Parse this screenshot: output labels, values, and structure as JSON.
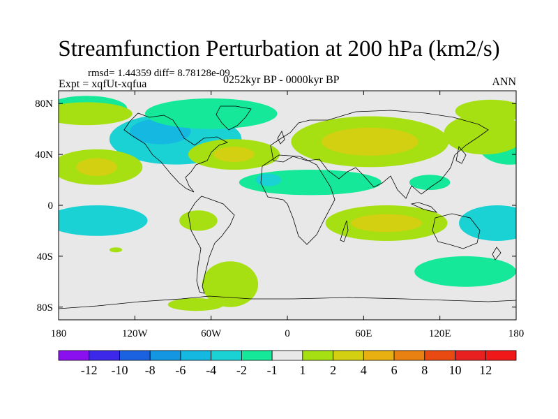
{
  "header": {
    "title": "Streamfunction Perturbation at 200 hPa (km2/s)",
    "stats": "rmsd= 1.44359 diff= 8.78128e-09",
    "experiment": "Expt = xqfUt-xqfua",
    "period": "0252kyr BP - 0000kyr BP",
    "season": "ANN"
  },
  "chart_data": {
    "type": "heatmap",
    "title": "Streamfunction Perturbation at 200 hPa (km2/s)",
    "xlabel": "",
    "ylabel": "",
    "xlim": [
      -180,
      180
    ],
    "ylim": [
      -90,
      90
    ],
    "x_ticks": [
      {
        "value": -180,
        "label": "180"
      },
      {
        "value": -120,
        "label": "120W"
      },
      {
        "value": -60,
        "label": "60W"
      },
      {
        "value": 0,
        "label": "0"
      },
      {
        "value": 60,
        "label": "60E"
      },
      {
        "value": 120,
        "label": "120E"
      },
      {
        "value": 180,
        "label": "180"
      }
    ],
    "y_ticks": [
      {
        "value": 80,
        "label": "80N"
      },
      {
        "value": 40,
        "label": "40N"
      },
      {
        "value": 0,
        "label": "0"
      },
      {
        "value": -40,
        "label": "40S"
      },
      {
        "value": -80,
        "label": "80S"
      }
    ],
    "colorbar": {
      "labels": [
        "-12",
        "-10",
        "-8",
        "-6",
        "-4",
        "-2",
        "-1",
        "1",
        "2",
        "4",
        "6",
        "8",
        "10",
        "12"
      ],
      "colors": [
        "#8a10f0",
        "#3c28e8",
        "#1a62e0",
        "#1496e0",
        "#14b8e0",
        "#1ad2d4",
        "#16e89a",
        "#e8e8e8",
        "#a6e012",
        "#d2d010",
        "#e8b010",
        "#e88012",
        "#e84a12",
        "#e82020",
        "#f01818"
      ]
    },
    "regions": [
      {
        "label": "-4",
        "color": "#1ad2d4",
        "lon": -88,
        "lat": 52,
        "rlon": 52,
        "rlat": 20
      },
      {
        "label": "-6",
        "color": "#14b8e0",
        "lon": -100,
        "lat": 58,
        "rlon": 24,
        "rlat": 10
      },
      {
        "label": "-2",
        "color": "#16e89a",
        "lon": -60,
        "lat": 72,
        "rlon": 52,
        "rlat": 12
      },
      {
        "label": "-2",
        "color": "#16e89a",
        "lon": -158,
        "lat": 76,
        "rlon": 32,
        "rlat": 10
      },
      {
        "label": "-2",
        "color": "#16e89a",
        "lon": 175,
        "lat": 46,
        "rlon": 24,
        "rlat": 14
      },
      {
        "label": "-2",
        "color": "#16e89a",
        "lon": 18,
        "lat": 18,
        "rlon": 56,
        "rlat": 10
      },
      {
        "label": "-4",
        "color": "#1ad2d4",
        "lon": -15,
        "lat": 20,
        "rlon": 10,
        "rlat": 5
      },
      {
        "label": "-2",
        "color": "#16e89a",
        "lon": 112,
        "lat": 18,
        "rlon": 16,
        "rlat": 6
      },
      {
        "label": "-4",
        "color": "#1ad2d4",
        "lon": -150,
        "lat": -12,
        "rlon": 40,
        "rlat": 12
      },
      {
        "label": "-4",
        "color": "#1ad2d4",
        "lon": 165,
        "lat": -14,
        "rlon": 30,
        "rlat": 14
      },
      {
        "label": "-2",
        "color": "#16e89a",
        "lon": 140,
        "lat": -52,
        "rlon": 40,
        "rlat": 12
      },
      {
        "label": "2",
        "color": "#a6e012",
        "lon": -158,
        "lat": 72,
        "rlon": 36,
        "rlat": 9
      },
      {
        "label": "2",
        "color": "#a6e012",
        "lon": 160,
        "lat": 74,
        "rlon": 28,
        "rlat": 9
      },
      {
        "label": "2",
        "color": "#a6e012",
        "lon": -150,
        "lat": 30,
        "rlon": 36,
        "rlat": 14
      },
      {
        "label": "4",
        "color": "#d2d010",
        "lon": -150,
        "lat": 30,
        "rlon": 16,
        "rlat": 7
      },
      {
        "label": "2",
        "color": "#a6e012",
        "lon": -42,
        "lat": 40,
        "rlon": 36,
        "rlat": 12
      },
      {
        "label": "4",
        "color": "#d2d010",
        "lon": -42,
        "lat": 40,
        "rlon": 16,
        "rlat": 6
      },
      {
        "label": "2",
        "color": "#a6e012",
        "lon": 65,
        "lat": 50,
        "rlon": 62,
        "rlat": 20
      },
      {
        "label": "4",
        "color": "#d2d010",
        "lon": 65,
        "lat": 50,
        "rlon": 38,
        "rlat": 11
      },
      {
        "label": "2",
        "color": "#a6e012",
        "lon": 155,
        "lat": 56,
        "rlon": 32,
        "rlat": 16
      },
      {
        "label": "2",
        "color": "#a6e012",
        "lon": -70,
        "lat": -12,
        "rlon": 15,
        "rlat": 8
      },
      {
        "label": "2",
        "color": "#a6e012",
        "lon": 78,
        "lat": -14,
        "rlon": 48,
        "rlat": 14
      },
      {
        "label": "4",
        "color": "#d2d010",
        "lon": 78,
        "lat": -14,
        "rlon": 28,
        "rlat": 7
      },
      {
        "label": "2",
        "color": "#a6e012",
        "lon": -45,
        "lat": -62,
        "rlon": 22,
        "rlat": 18
      },
      {
        "label": "2",
        "color": "#a6e012",
        "lon": -72,
        "lat": -78,
        "rlon": 22,
        "rlat": 5
      },
      {
        "label": "2",
        "color": "#a6e012",
        "lon": -135,
        "lat": -35,
        "rlon": 5,
        "rlat": 2
      }
    ]
  }
}
